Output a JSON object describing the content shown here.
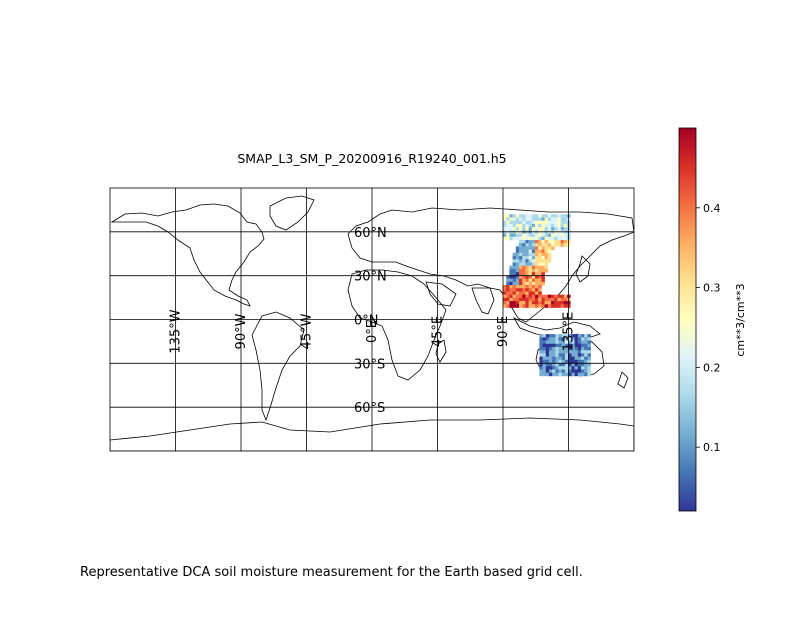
{
  "title": "SMAP_L3_SM_P_20200916_R19240_001.h5",
  "caption": "Representative DCA soil moisture measurement for the Earth based grid cell.",
  "map": {
    "projection": "PlateCarree",
    "extent": {
      "lon": [
        -180,
        180
      ],
      "lat": [
        -90,
        90
      ]
    },
    "gridlines": {
      "lon": [
        -135,
        -90,
        -45,
        0,
        45,
        90,
        135
      ],
      "lat": [
        -60,
        -30,
        0,
        30,
        60
      ],
      "lon_labels": [
        "135°W",
        "90°W",
        "45°W",
        "0°E",
        "45°E",
        "90°E",
        "135°E"
      ],
      "lat_labels": [
        "60°S",
        "30°S",
        "0°N",
        "30°N",
        "60°N"
      ]
    },
    "swaths": [
      {
        "name": "asia-swath",
        "lon": [
          90,
          135
        ],
        "lat": [
          10,
          72
        ]
      },
      {
        "name": "australia-swath",
        "lon": [
          115,
          150
        ],
        "lat": [
          -38,
          -10
        ]
      }
    ]
  },
  "colorbar": {
    "label": "cm**3/cm**3",
    "colormap": "RdYlBu_r",
    "range": [
      0.02,
      0.5
    ],
    "ticks": [
      0.1,
      0.2,
      0.3,
      0.4
    ],
    "tick_labels": [
      "0.1",
      "0.2",
      "0.3",
      "0.4"
    ],
    "colors": [
      "#313695",
      "#4575b4",
      "#74add1",
      "#abd9e9",
      "#e0f3f8",
      "#ffffbf",
      "#fee090",
      "#fdae61",
      "#f46d43",
      "#d73027",
      "#a50026"
    ]
  }
}
